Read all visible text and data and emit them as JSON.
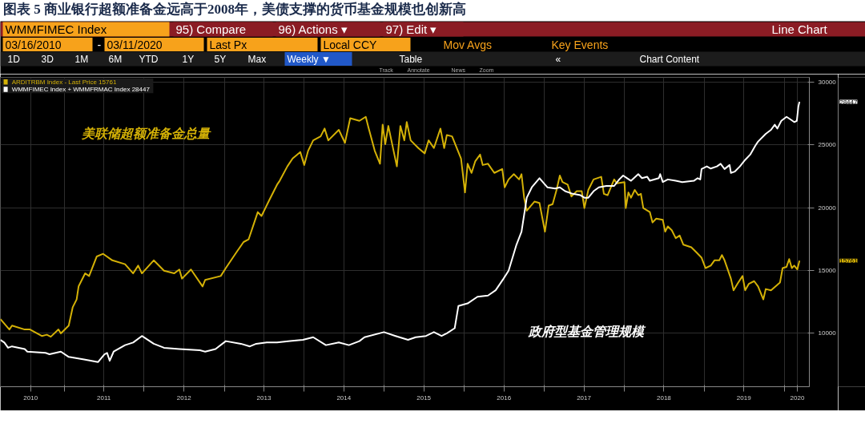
{
  "chart_data": {
    "type": "line",
    "title": "图表 5 商业银行超额准备金远高于2008年，美债支撑的货币基金规模也创新高",
    "annotations": [
      "WMMFIMEC Index",
      "95) Compare",
      "96) Actions ▾",
      "97) Edit ▾",
      "Line Chart",
      "03/16/2010",
      "-",
      "03/11/2020",
      "Last Px",
      "Local CCY",
      "Mov Avgs",
      "Key Events",
      "1D",
      "3D",
      "1M",
      "6M",
      "YTD",
      "1Y",
      "5Y",
      "Max",
      "Weekly ▼",
      "Table",
      "«",
      "Chart Content",
      "Track",
      "Annotate",
      "News",
      "Zoom",
      "美联储超额准备金总量",
      "政府型基金管理规模",
      "15761",
      "28447"
    ],
    "series": [
      {
        "name": "ARDITRBM Index - Last Price  15761",
        "color": "#d4b106",
        "x": [
          "2010-03-16",
          "2010-04-26",
          "2010-05-08",
          "2010-07-05",
          "2010-07-29",
          "2010-09-21",
          "2010-10-14",
          "2010-11-01",
          "2010-12-06",
          "2010-12-17",
          "2011-01-22",
          "2011-02-09",
          "2011-02-27",
          "2011-03-08",
          "2011-04-07",
          "2011-04-25",
          "2011-05-30",
          "2011-06-28",
          "2011-08-09",
          "2011-10-06",
          "2011-11-12",
          "2011-12-05",
          "2011-12-22",
          "2012-02-14",
          "2012-04-01",
          "2012-05-17",
          "2012-06-10",
          "2012-06-22",
          "2012-08-02",
          "2012-09-24",
          "2012-10-06",
          "2012-12-16",
          "2013-01-08",
          "2013-02-25",
          "2013-03-30",
          "2013-04-22",
          "2013-06-03",
          "2013-06-20",
          "2013-07-25",
          "2013-08-30",
          "2013-09-11",
          "2013-10-16",
          "2013-11-09",
          "2013-12-14",
          "2014-01-01",
          "2014-01-19",
          "2014-02-11",
          "2014-03-17",
          "2014-04-04",
          "2014-04-21",
          "2014-06-08",
          "2014-07-06",
          "2014-07-30",
          "2014-09-10",
          "2014-10-09",
          "2014-10-21",
          "2014-11-19",
          "2014-12-13",
          "2014-12-25",
          "2015-01-06",
          "2015-01-20",
          "2015-02-28",
          "2015-03-16",
          "2015-04-03",
          "2015-04-14",
          "2015-05-02",
          "2015-06-06",
          "2015-07-05",
          "2015-07-23",
          "2015-08-16",
          "2015-09-15",
          "2015-10-02",
          "2015-10-14",
          "2015-11-07",
          "2015-12-18",
          "2016-01-05",
          "2016-01-17",
          "2016-02-04",
          "2016-02-21",
          "2016-03-14",
          "2016-03-26",
          "2016-04-19",
          "2016-05-18",
          "2016-06-23",
          "2016-07-04",
          "2016-07-22",
          "2016-08-15",
          "2016-09-08",
          "2016-09-19",
          "2016-10-01",
          "2016-10-13",
          "2016-11-17",
          "2016-12-10",
          "2017-01-04",
          "2017-01-21",
          "2017-02-08",
          "2017-02-26",
          "2017-03-13",
          "2017-03-25",
          "2017-04-18",
          "2017-05-05",
          "2017-05-29",
          "2017-06-21",
          "2017-07-03",
          "2017-07-21",
          "2017-08-14",
          "2017-09-18",
          "2017-09-30",
          "2017-10-17",
          "2017-11-16",
          "2017-11-28",
          "2018-01-02",
          "2018-01-08",
          "2018-01-20",
          "2018-02-01",
          "2018-02-18",
          "2018-03-06",
          "2018-03-18",
          "2018-03-29",
          "2018-04-28",
          "2018-05-10",
          "2018-05-27",
          "2018-06-26",
          "2018-07-07",
          "2018-07-19",
          "2018-08-06",
          "2018-08-24",
          "2018-09-11",
          "2018-09-28",
          "2018-11-03",
          "2018-11-27",
          "2018-12-20",
          "2019-01-07",
          "2019-01-31",
          "2019-02-17",
          "2019-03-11",
          "2019-03-23",
          "2019-04-04",
          "2019-05-03",
          "2019-05-15",
          "2019-06-02",
          "2019-06-25",
          "2019-07-07",
          "2019-07-24",
          "2019-08-17",
          "2019-09-04",
          "2019-09-28",
          "2019-10-09",
          "2019-11-02",
          "2019-12-13",
          "2019-12-25",
          "2020-01-12",
          "2020-01-24",
          "2020-02-05",
          "2020-02-16",
          "2020-03-01",
          "2020-03-11"
        ],
        "values": [
          11100,
          10270,
          10580,
          10270,
          10270,
          9750,
          9850,
          9690,
          10270,
          9960,
          10580,
          12040,
          12670,
          13710,
          14750,
          14540,
          16100,
          16310,
          15790,
          15480,
          14750,
          15370,
          14750,
          15790,
          14960,
          14750,
          15060,
          14330,
          15060,
          13710,
          14230,
          14540,
          15170,
          16420,
          17250,
          17460,
          19640,
          19330,
          20580,
          21830,
          22140,
          23290,
          23920,
          24440,
          23400,
          24540,
          25370,
          25690,
          26310,
          25370,
          26210,
          25170,
          27140,
          26930,
          27250,
          26420,
          24540,
          23500,
          26620,
          25060,
          26520,
          23290,
          26520,
          25370,
          26830,
          25370,
          24750,
          24330,
          25370,
          24750,
          26310,
          24750,
          25790,
          25690,
          23920,
          21210,
          23500,
          22770,
          23710,
          24230,
          23400,
          23500,
          22770,
          23080,
          21620,
          22250,
          22670,
          22250,
          22670,
          20790,
          19750,
          20480,
          20370,
          18080,
          20160,
          20270,
          21410,
          22560,
          22040,
          21830,
          20890,
          21310,
          21310,
          19960,
          21410,
          22250,
          22460,
          21100,
          20990,
          22250,
          21940,
          22040,
          19960,
          21210,
          20790,
          21410,
          20990,
          21100,
          19960,
          19640,
          18810,
          19120,
          19020,
          18080,
          18500,
          18190,
          17560,
          17770,
          17040,
          16830,
          16420,
          16000,
          15170,
          15370,
          15790,
          15790,
          16210,
          15790,
          14330,
          13400,
          13920,
          14540,
          13400,
          13920,
          14130,
          13710,
          12670,
          13500,
          13400,
          14020,
          15170,
          15270,
          15890,
          15170,
          15370,
          15060,
          15761
        ]
      },
      {
        "name": "WMMFIMEC Index + WMMFRMAC Index  28447",
        "color": "#ffffff",
        "x": [
          "2010-03-16",
          "2010-04-03",
          "2010-04-20",
          "2010-05-08",
          "2010-07-05",
          "2010-07-17",
          "2010-10-08",
          "2010-10-26",
          "2010-12-17",
          "2011-01-22",
          "2011-04-02",
          "2011-06-05",
          "2011-07-04",
          "2011-07-16",
          "2011-07-28",
          "2011-08-15",
          "2011-10-06",
          "2011-11-12",
          "2011-12-22",
          "2012-02-14",
          "2012-04-01",
          "2012-06-10",
          "2012-09-12",
          "2012-10-06",
          "2012-11-22",
          "2013-01-08",
          "2013-03-18",
          "2013-04-28",
          "2013-05-27",
          "2013-07-14",
          "2013-08-30",
          "2013-10-28",
          "2013-12-26",
          "2014-02-11",
          "2014-04-10",
          "2014-06-08",
          "2014-07-24",
          "2014-09-10",
          "2014-10-03",
          "2014-12-31",
          "2015-02-22",
          "2015-04-20",
          "2015-05-25",
          "2015-07-11",
          "2015-08-16",
          "2015-09-20",
          "2015-10-14",
          "2015-11-19",
          "2015-12-06",
          "2016-01-17",
          "2016-03-02",
          "2016-04-19",
          "2016-05-24",
          "2016-06-29",
          "2016-07-22",
          "2016-08-27",
          "2016-09-19",
          "2016-10-13",
          "2016-11-05",
          "2016-12-10",
          "2017-01-15",
          "2017-02-20",
          "2017-03-13",
          "2017-04-06",
          "2017-05-11",
          "2017-06-15",
          "2017-07-03",
          "2017-07-21",
          "2017-08-14",
          "2017-09-07",
          "2017-10-11",
          "2017-11-16",
          "2017-12-09",
          "2017-12-27",
          "2018-01-14",
          "2018-02-01",
          "2018-03-06",
          "2018-03-23",
          "2018-04-16",
          "2018-04-28",
          "2018-06-08",
          "2018-06-14",
          "2018-06-26",
          "2018-07-19",
          "2018-08-24",
          "2018-09-23",
          "2018-11-15",
          "2018-12-02",
          "2018-12-14",
          "2018-12-20",
          "2019-01-13",
          "2019-01-31",
          "2019-02-28",
          "2019-03-17",
          "2019-04-04",
          "2019-04-27",
          "2019-05-03",
          "2019-05-20",
          "2019-06-13",
          "2019-07-07",
          "2019-07-30",
          "2019-08-23",
          "2019-09-04",
          "2019-10-09",
          "2019-11-02",
          "2019-11-19",
          "2019-12-01",
          "2019-12-19",
          "2020-01-12",
          "2020-01-30",
          "2020-02-16",
          "2020-02-28",
          "2020-03-06",
          "2020-03-11"
        ],
        "values": [
          9440,
          9230,
          8810,
          8920,
          8710,
          8500,
          8400,
          8290,
          8500,
          8080,
          7870,
          7670,
          8290,
          8400,
          7770,
          8500,
          9020,
          9230,
          9750,
          9130,
          8810,
          8710,
          8610,
          8500,
          8710,
          9340,
          9130,
          8920,
          9130,
          9230,
          9230,
          9340,
          9440,
          9650,
          9020,
          9230,
          9020,
          9340,
          9650,
          10060,
          9750,
          9440,
          9650,
          9750,
          10060,
          9750,
          9960,
          10370,
          12150,
          12350,
          12880,
          12980,
          13400,
          14330,
          14960,
          17040,
          18080,
          20790,
          21620,
          22350,
          21620,
          21520,
          21620,
          21310,
          21100,
          20990,
          20790,
          20790,
          21310,
          21620,
          21730,
          21730,
          22250,
          22560,
          22350,
          22140,
          22670,
          22350,
          22460,
          22140,
          22350,
          22670,
          22040,
          22250,
          22140,
          22040,
          22140,
          22350,
          22250,
          23080,
          23290,
          23120,
          23290,
          23500,
          23080,
          23400,
          22770,
          22870,
          23290,
          23810,
          24230,
          24960,
          25270,
          25890,
          26210,
          26620,
          26310,
          26930,
          27250,
          27040,
          26830,
          26930,
          28080,
          28447
        ]
      }
    ],
    "xlim": [
      "2010-03-16",
      "2020-04-25"
    ],
    "xticks": [
      {
        "value": "2010-08-01",
        "label": "2010"
      },
      {
        "value": "2011-01-01",
        "label": null
      },
      {
        "value": "2011-07-01",
        "label": "2011"
      },
      {
        "value": "2012-01-01",
        "label": null
      },
      {
        "value": "2012-07-01",
        "label": "2012"
      },
      {
        "value": "2013-01-01",
        "label": null
      },
      {
        "value": "2013-07-01",
        "label": "2013"
      },
      {
        "value": "2014-01-01",
        "label": null
      },
      {
        "value": "2014-07-01",
        "label": "2014"
      },
      {
        "value": "2015-01-01",
        "label": null
      },
      {
        "value": "2015-07-01",
        "label": "2015"
      },
      {
        "value": "2016-01-01",
        "label": null
      },
      {
        "value": "2016-07-01",
        "label": "2016"
      },
      {
        "value": "2017-01-01",
        "label": null
      },
      {
        "value": "2017-07-01",
        "label": "2017"
      },
      {
        "value": "2018-01-01",
        "label": null
      },
      {
        "value": "2018-07-01",
        "label": "2018"
      },
      {
        "value": "2019-01-01",
        "label": null
      },
      {
        "value": "2019-07-01",
        "label": "2019"
      },
      {
        "value": "2020-01-01",
        "label": null
      },
      {
        "value": "2020-03-01",
        "label": "2020"
      }
    ],
    "ylim": [
      5700,
      30400
    ],
    "yticks": [
      10000,
      15000,
      20000,
      25000,
      30000
    ],
    "grid": true,
    "legend": "top left"
  }
}
